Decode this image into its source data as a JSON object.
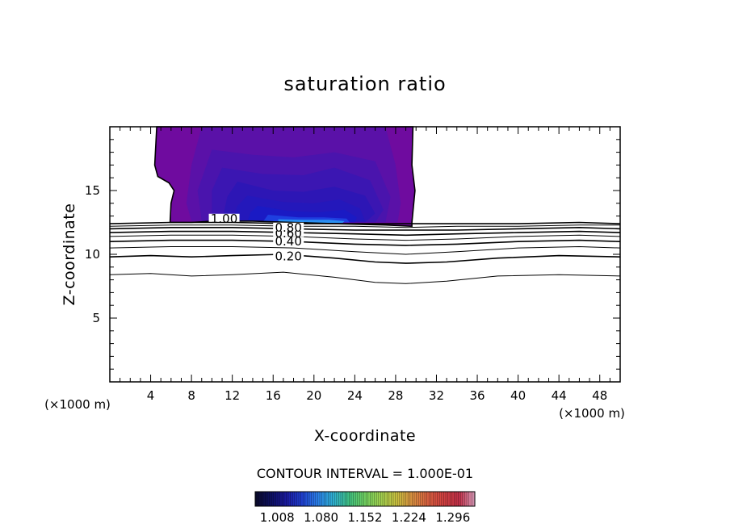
{
  "chart_data": {
    "type": "contour",
    "title": "saturation ratio",
    "xlabel": "X-coordinate",
    "ylabel": "Z-coordinate",
    "x_unit": "(×1000 m)",
    "z_unit": "(×1000 m)",
    "xlim": [
      0,
      50
    ],
    "ylim": [
      0,
      20
    ],
    "x_ticks": [
      "4",
      "8",
      "12",
      "16",
      "20",
      "24",
      "28",
      "32",
      "36",
      "40",
      "44",
      "48"
    ],
    "y_ticks": [
      "5",
      "10",
      "15"
    ],
    "contour_interval": "CONTOUR INTERVAL = 1.000E-01",
    "contour_lines": [
      {
        "level": 0.1,
        "label": "",
        "points": [
          [
            0,
            8.4
          ],
          [
            4,
            8.5
          ],
          [
            8,
            8.3
          ],
          [
            12,
            8.4
          ],
          [
            17,
            8.6
          ],
          [
            22,
            8.2
          ],
          [
            26,
            7.8
          ],
          [
            29,
            7.7
          ],
          [
            33,
            7.9
          ],
          [
            38,
            8.3
          ],
          [
            44,
            8.4
          ],
          [
            50,
            8.3
          ]
        ]
      },
      {
        "level": 0.2,
        "label": "0.20",
        "points": [
          [
            0,
            9.8
          ],
          [
            4,
            9.9
          ],
          [
            8,
            9.8
          ],
          [
            12,
            9.9
          ],
          [
            17,
            10.0
          ],
          [
            22,
            9.7
          ],
          [
            26,
            9.4
          ],
          [
            29,
            9.3
          ],
          [
            33,
            9.4
          ],
          [
            38,
            9.7
          ],
          [
            44,
            9.9
          ],
          [
            50,
            9.8
          ]
        ]
      },
      {
        "level": 0.3,
        "label": "",
        "points": [
          [
            0,
            10.5
          ],
          [
            6,
            10.6
          ],
          [
            12,
            10.6
          ],
          [
            18,
            10.5
          ],
          [
            24,
            10.2
          ],
          [
            29,
            10.0
          ],
          [
            34,
            10.2
          ],
          [
            40,
            10.5
          ],
          [
            46,
            10.6
          ],
          [
            50,
            10.5
          ]
        ]
      },
      {
        "level": 0.4,
        "label": "0.40",
        "points": [
          [
            0,
            11.0
          ],
          [
            6,
            11.1
          ],
          [
            12,
            11.1
          ],
          [
            18,
            11.0
          ],
          [
            24,
            10.8
          ],
          [
            29,
            10.7
          ],
          [
            34,
            10.8
          ],
          [
            40,
            11.0
          ],
          [
            46,
            11.1
          ],
          [
            50,
            11.0
          ]
        ]
      },
      {
        "level": 0.5,
        "label": "",
        "points": [
          [
            0,
            11.4
          ],
          [
            6,
            11.5
          ],
          [
            12,
            11.5
          ],
          [
            18,
            11.4
          ],
          [
            24,
            11.2
          ],
          [
            29,
            11.1
          ],
          [
            34,
            11.2
          ],
          [
            40,
            11.4
          ],
          [
            46,
            11.5
          ],
          [
            50,
            11.4
          ]
        ]
      },
      {
        "level": 0.6,
        "label": "0.60",
        "points": [
          [
            0,
            11.7
          ],
          [
            6,
            11.8
          ],
          [
            12,
            11.8
          ],
          [
            18,
            11.7
          ],
          [
            24,
            11.6
          ],
          [
            29,
            11.5
          ],
          [
            34,
            11.6
          ],
          [
            40,
            11.7
          ],
          [
            46,
            11.8
          ],
          [
            50,
            11.7
          ]
        ]
      },
      {
        "level": 0.8,
        "label": "0.80",
        "points": [
          [
            0,
            12.0
          ],
          [
            6,
            12.1
          ],
          [
            12,
            12.1
          ],
          [
            18,
            12.0
          ],
          [
            24,
            11.9
          ],
          [
            29,
            11.9
          ],
          [
            34,
            11.9
          ],
          [
            40,
            12.0
          ],
          [
            46,
            12.1
          ],
          [
            50,
            12.0
          ]
        ]
      },
      {
        "level": 0.9,
        "label": "",
        "points": [
          [
            0,
            12.2
          ],
          [
            6,
            12.3
          ],
          [
            12,
            12.3
          ],
          [
            18,
            12.2
          ],
          [
            24,
            12.2
          ],
          [
            29,
            12.1
          ],
          [
            34,
            12.2
          ],
          [
            40,
            12.2
          ],
          [
            46,
            12.3
          ],
          [
            50,
            12.3
          ]
        ]
      },
      {
        "level": 1.0,
        "label": "1.00",
        "points": [
          [
            0,
            12.4
          ],
          [
            6,
            12.5
          ],
          [
            12,
            12.5
          ],
          [
            18,
            12.4
          ],
          [
            24,
            12.4
          ],
          [
            29,
            12.4
          ],
          [
            34,
            12.4
          ],
          [
            40,
            12.4
          ],
          [
            46,
            12.5
          ],
          [
            50,
            12.4
          ]
        ]
      }
    ],
    "label_positions": [
      {
        "label": "0.20",
        "x": 17.5,
        "y": 9.85
      },
      {
        "label": "0.40",
        "x": 17.5,
        "y": 11.0
      },
      {
        "label": "0.60",
        "x": 17.5,
        "y": 11.65
      },
      {
        "label": "0.80",
        "x": 17.5,
        "y": 12.1
      },
      {
        "label": "1.00",
        "x": 11.2,
        "y": 12.8
      }
    ],
    "supersat_region": {
      "outline": [
        [
          4.6,
          20
        ],
        [
          29.7,
          20
        ],
        [
          29.6,
          17
        ],
        [
          29.9,
          15
        ],
        [
          29.6,
          12.5
        ],
        [
          29.6,
          12.2
        ],
        [
          27,
          12.3
        ],
        [
          22,
          12.4
        ],
        [
          18,
          12.5
        ],
        [
          14,
          12.6
        ],
        [
          10,
          12.6
        ],
        [
          8,
          12.5
        ],
        [
          5.9,
          12.5
        ],
        [
          6.0,
          14
        ],
        [
          6.3,
          15
        ],
        [
          5.8,
          15.6
        ],
        [
          4.7,
          16.1
        ],
        [
          4.4,
          17.0
        ],
        [
          4.6,
          20
        ]
      ],
      "shading_levels": [
        {
          "value": 1.008,
          "color": "#6f0b9f",
          "points": [
            [
              4.6,
              20
            ],
            [
              29.7,
              20
            ],
            [
              29.6,
              17
            ],
            [
              29.9,
              15
            ],
            [
              29.6,
              12.5
            ],
            [
              29.6,
              12.2
            ],
            [
              27,
              12.3
            ],
            [
              22,
              12.4
            ],
            [
              18,
              12.5
            ],
            [
              14,
              12.6
            ],
            [
              10,
              12.6
            ],
            [
              8,
              12.5
            ],
            [
              5.9,
              12.5
            ],
            [
              6.0,
              14
            ],
            [
              6.3,
              15
            ],
            [
              5.8,
              15.6
            ],
            [
              4.7,
              16.1
            ],
            [
              4.4,
              17.0
            ],
            [
              4.6,
              20
            ]
          ]
        },
        {
          "value": 1.03,
          "color": "#5a11a8",
          "points": [
            [
              9,
              20
            ],
            [
              27,
              20
            ],
            [
              28,
              17
            ],
            [
              28.5,
              14
            ],
            [
              28.2,
              12.5
            ],
            [
              8,
              12.6
            ],
            [
              7.5,
              14
            ],
            [
              8,
              17
            ]
          ]
        },
        {
          "value": 1.06,
          "color": "#4a14ad",
          "points": [
            [
              10,
              18.2
            ],
            [
              14,
              17.8
            ],
            [
              18,
              17.6
            ],
            [
              22,
              18.0
            ],
            [
              26,
              17.3
            ],
            [
              27.5,
              14.5
            ],
            [
              27,
              12.5
            ],
            [
              9,
              12.6
            ],
            [
              8.6,
              15
            ]
          ]
        },
        {
          "value": 1.09,
          "color": "#3b16b2",
          "points": [
            [
              11,
              16.8
            ],
            [
              15,
              16.3
            ],
            [
              19,
              16.2
            ],
            [
              22,
              16.8
            ],
            [
              25.5,
              15.8
            ],
            [
              26.8,
              13.5
            ],
            [
              26,
              12.5
            ],
            [
              10,
              12.6
            ],
            [
              10,
              15
            ]
          ]
        },
        {
          "value": 1.12,
          "color": "#2d16b5",
          "points": [
            [
              12.5,
              15.7
            ],
            [
              16,
              15.0
            ],
            [
              19,
              14.9
            ],
            [
              22,
              15.3
            ],
            [
              25,
              14.6
            ],
            [
              26,
              13.2
            ],
            [
              25,
              12.5
            ],
            [
              11,
              12.6
            ],
            [
              11.5,
              14.5
            ]
          ]
        },
        {
          "value": 1.15,
          "color": "#2418bb",
          "points": [
            [
              13.5,
              14.6
            ],
            [
              17,
              14.1
            ],
            [
              20,
              14.0
            ],
            [
              22.5,
              14.3
            ],
            [
              24.5,
              13.6
            ],
            [
              25,
              12.6
            ],
            [
              12,
              12.6
            ],
            [
              12.5,
              13.8
            ]
          ]
        },
        {
          "value": 1.18,
          "color": "#1a1ac4",
          "points": [
            [
              14.5,
              13.8
            ],
            [
              17.5,
              13.4
            ],
            [
              20.5,
              13.3
            ],
            [
              23,
              13.5
            ],
            [
              24.2,
              12.9
            ],
            [
              24,
              12.5
            ],
            [
              13.5,
              12.6
            ],
            [
              13.8,
              13.3
            ]
          ]
        },
        {
          "value": 1.21,
          "color": "#1e3fe0",
          "points": [
            [
              15.5,
              13.1
            ],
            [
              18.5,
              12.9
            ],
            [
              21,
              12.9
            ],
            [
              23.2,
              12.8
            ],
            [
              23.5,
              12.5
            ],
            [
              15,
              12.55
            ]
          ]
        },
        {
          "value": 1.24,
          "color": "#2a8ff0",
          "points": [
            [
              16.5,
              12.75
            ],
            [
              19,
              12.7
            ],
            [
              21.5,
              12.7
            ],
            [
              23,
              12.6
            ],
            [
              22.8,
              12.45
            ],
            [
              16.5,
              12.5
            ]
          ]
        }
      ]
    },
    "colorbar": {
      "tick_labels": [
        "1.008",
        "1.080",
        "1.152",
        "1.224",
        "1.296"
      ],
      "range": [
        0.972,
        1.332
      ],
      "colors": [
        "#0a0a2a",
        "#0d1060",
        "#1a1aa0",
        "#2040d0",
        "#2a80e8",
        "#2fb0d0",
        "#40c080",
        "#70d060",
        "#a0d050",
        "#c8c040",
        "#d89040",
        "#d86040",
        "#d04040",
        "#c03048",
        "#e0a0c0"
      ]
    }
  }
}
